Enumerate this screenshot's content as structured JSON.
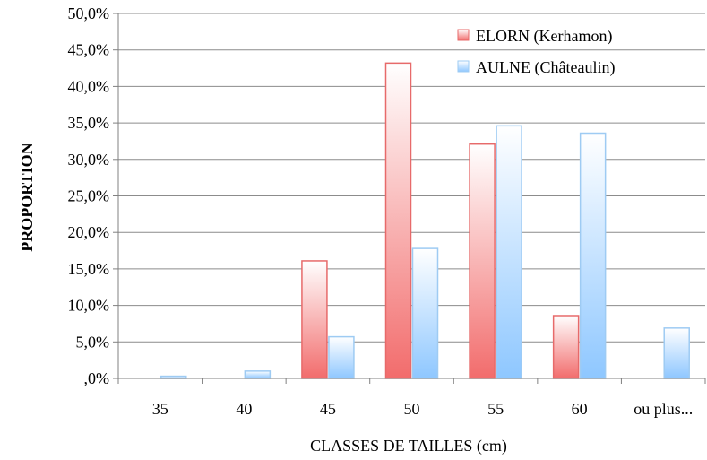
{
  "chart_data": {
    "type": "bar",
    "title": "",
    "xlabel": "CLASSES  DE TAILLES (cm)",
    "ylabel": "PROPORTION",
    "categories": [
      "35",
      "40",
      "45",
      "50",
      "55",
      "60",
      "ou plus..."
    ],
    "ylim": [
      0,
      50
    ],
    "ytick_labels": [
      ",0%",
      "5,0%",
      "10,0%",
      "15,0%",
      "20,0%",
      "25,0%",
      "30,0%",
      "35,0%",
      "40,0%",
      "45,0%",
      "50,0%"
    ],
    "grid": true,
    "legend_position": "top-right",
    "series": [
      {
        "name": "ELORN (Kerhamon)",
        "values": [
          0,
          0,
          16.1,
          43.2,
          32.1,
          8.6,
          0
        ],
        "color": "#f26c6c",
        "border": "#e76a6a"
      },
      {
        "name": "AULNE (Châteaulin)",
        "values": [
          0.3,
          1.0,
          5.7,
          17.8,
          34.6,
          33.6,
          6.9
        ],
        "color": "#8ec7ff",
        "border": "#9ecbf3"
      }
    ]
  }
}
